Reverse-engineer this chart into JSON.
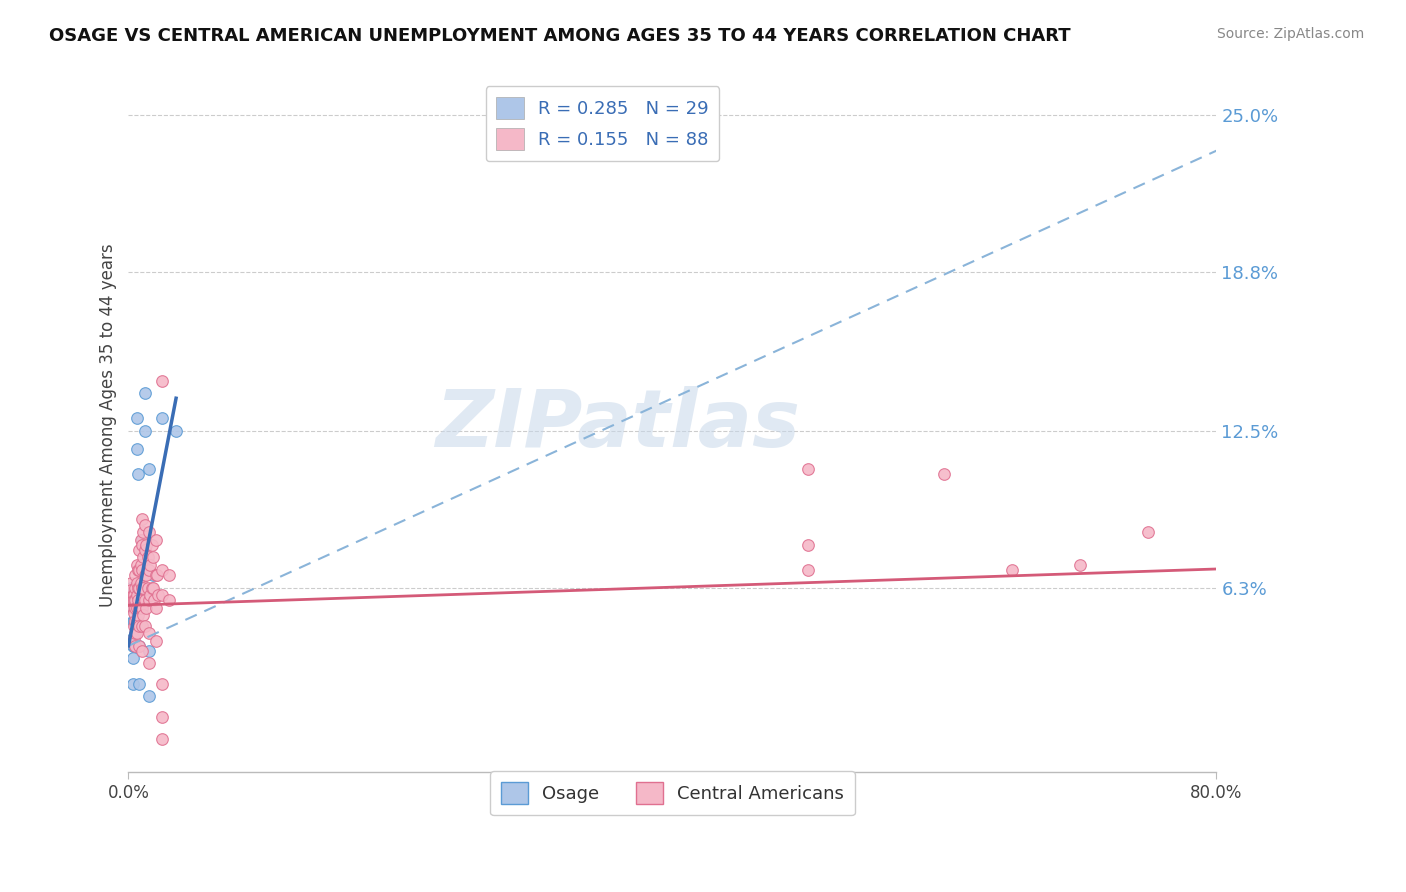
{
  "title": "OSAGE VS CENTRAL AMERICAN UNEMPLOYMENT AMONG AGES 35 TO 44 YEARS CORRELATION CHART",
  "source": "Source: ZipAtlas.com",
  "ylabel": "Unemployment Among Ages 35 to 44 years",
  "xlim": [
    0.0,
    0.8
  ],
  "ylim": [
    -0.01,
    0.265
  ],
  "yticks": [
    0.063,
    0.125,
    0.188,
    0.25
  ],
  "ytick_labels": [
    "6.3%",
    "12.5%",
    "18.8%",
    "25.0%"
  ],
  "xtick_positions": [
    0.0,
    0.8
  ],
  "xtick_labels": [
    "0.0%",
    "80.0%"
  ],
  "watermark": "ZIPatlas",
  "osage_color": "#aec6e8",
  "osage_edge_color": "#5b9bd5",
  "central_color": "#f5b8c8",
  "central_edge_color": "#e07090",
  "osage_trend_color": "#3a6db5",
  "osage_trend_dash_color": "#8ab4d9",
  "central_trend_color": "#d45a78",
  "background_color": "#ffffff",
  "grid_color": "#cccccc",
  "osage_points": [
    [
      0.002,
      0.063
    ],
    [
      0.002,
      0.06
    ],
    [
      0.003,
      0.055
    ],
    [
      0.003,
      0.05
    ],
    [
      0.003,
      0.043
    ],
    [
      0.003,
      0.04
    ],
    [
      0.003,
      0.035
    ],
    [
      0.003,
      0.025
    ],
    [
      0.004,
      0.063
    ],
    [
      0.004,
      0.05
    ],
    [
      0.004,
      0.04
    ],
    [
      0.006,
      0.13
    ],
    [
      0.006,
      0.118
    ],
    [
      0.007,
      0.108
    ],
    [
      0.008,
      0.058
    ],
    [
      0.008,
      0.04
    ],
    [
      0.008,
      0.025
    ],
    [
      0.01,
      0.082
    ],
    [
      0.01,
      0.062
    ],
    [
      0.01,
      0.048
    ],
    [
      0.012,
      0.14
    ],
    [
      0.012,
      0.125
    ],
    [
      0.015,
      0.11
    ],
    [
      0.015,
      0.06
    ],
    [
      0.015,
      0.038
    ],
    [
      0.015,
      0.02
    ],
    [
      0.018,
      0.068
    ],
    [
      0.025,
      0.13
    ],
    [
      0.035,
      0.125
    ]
  ],
  "central_points": [
    [
      0.002,
      0.065
    ],
    [
      0.002,
      0.062
    ],
    [
      0.003,
      0.06
    ],
    [
      0.003,
      0.058
    ],
    [
      0.003,
      0.055
    ],
    [
      0.004,
      0.06
    ],
    [
      0.004,
      0.058
    ],
    [
      0.004,
      0.053
    ],
    [
      0.004,
      0.048
    ],
    [
      0.004,
      0.043
    ],
    [
      0.005,
      0.068
    ],
    [
      0.005,
      0.063
    ],
    [
      0.005,
      0.058
    ],
    [
      0.005,
      0.055
    ],
    [
      0.005,
      0.05
    ],
    [
      0.005,
      0.045
    ],
    [
      0.005,
      0.04
    ],
    [
      0.006,
      0.072
    ],
    [
      0.006,
      0.065
    ],
    [
      0.006,
      0.06
    ],
    [
      0.006,
      0.055
    ],
    [
      0.006,
      0.05
    ],
    [
      0.006,
      0.045
    ],
    [
      0.007,
      0.07
    ],
    [
      0.007,
      0.063
    ],
    [
      0.007,
      0.058
    ],
    [
      0.007,
      0.052
    ],
    [
      0.008,
      0.078
    ],
    [
      0.008,
      0.07
    ],
    [
      0.008,
      0.063
    ],
    [
      0.008,
      0.055
    ],
    [
      0.008,
      0.048
    ],
    [
      0.008,
      0.04
    ],
    [
      0.009,
      0.082
    ],
    [
      0.009,
      0.072
    ],
    [
      0.009,
      0.065
    ],
    [
      0.009,
      0.055
    ],
    [
      0.01,
      0.09
    ],
    [
      0.01,
      0.08
    ],
    [
      0.01,
      0.07
    ],
    [
      0.01,
      0.063
    ],
    [
      0.01,
      0.055
    ],
    [
      0.01,
      0.048
    ],
    [
      0.01,
      0.038
    ],
    [
      0.011,
      0.085
    ],
    [
      0.011,
      0.075
    ],
    [
      0.011,
      0.063
    ],
    [
      0.011,
      0.052
    ],
    [
      0.012,
      0.088
    ],
    [
      0.012,
      0.078
    ],
    [
      0.012,
      0.068
    ],
    [
      0.012,
      0.058
    ],
    [
      0.012,
      0.048
    ],
    [
      0.013,
      0.08
    ],
    [
      0.013,
      0.068
    ],
    [
      0.013,
      0.055
    ],
    [
      0.014,
      0.075
    ],
    [
      0.014,
      0.063
    ],
    [
      0.015,
      0.085
    ],
    [
      0.015,
      0.07
    ],
    [
      0.015,
      0.058
    ],
    [
      0.015,
      0.045
    ],
    [
      0.015,
      0.033
    ],
    [
      0.016,
      0.072
    ],
    [
      0.016,
      0.06
    ],
    [
      0.017,
      0.08
    ],
    [
      0.017,
      0.063
    ],
    [
      0.018,
      0.075
    ],
    [
      0.018,
      0.063
    ],
    [
      0.019,
      0.058
    ],
    [
      0.02,
      0.082
    ],
    [
      0.02,
      0.068
    ],
    [
      0.02,
      0.055
    ],
    [
      0.02,
      0.042
    ],
    [
      0.021,
      0.068
    ],
    [
      0.022,
      0.06
    ],
    [
      0.025,
      0.145
    ],
    [
      0.025,
      0.07
    ],
    [
      0.025,
      0.06
    ],
    [
      0.025,
      0.025
    ],
    [
      0.025,
      0.012
    ],
    [
      0.025,
      0.003
    ],
    [
      0.03,
      0.068
    ],
    [
      0.03,
      0.058
    ],
    [
      0.5,
      0.11
    ],
    [
      0.5,
      0.08
    ],
    [
      0.5,
      0.07
    ],
    [
      0.6,
      0.108
    ],
    [
      0.65,
      0.07
    ],
    [
      0.7,
      0.072
    ],
    [
      0.75,
      0.085
    ]
  ],
  "osage_trend_solid": {
    "x_start": 0.0,
    "x_end": 0.035,
    "intercept": 0.04,
    "slope": 2.8
  },
  "osage_trend_dash": {
    "x_start": 0.0,
    "x_end": 0.8,
    "intercept": 0.04,
    "slope": 0.245
  },
  "central_trend": {
    "x_start": 0.0,
    "x_end": 0.8,
    "intercept": 0.056,
    "slope": 0.018
  }
}
